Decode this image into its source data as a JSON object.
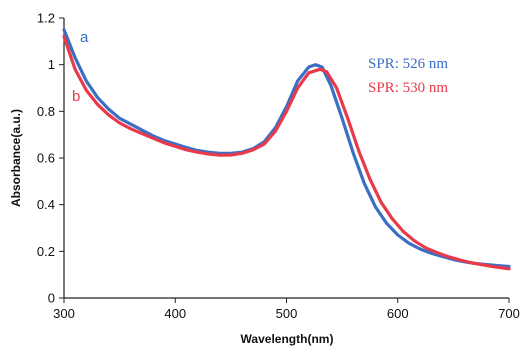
{
  "chart_data": {
    "type": "line",
    "title": "",
    "xlabel": "Wavelength(nm)",
    "ylabel": "Absorbance(a.u.)",
    "xlim": [
      300,
      700
    ],
    "ylim": [
      0,
      1.2
    ],
    "x_ticks": [
      300,
      400,
      500,
      600,
      700
    ],
    "y_ticks": [
      0,
      0.2,
      0.4,
      0.6,
      0.8,
      1,
      1.2
    ],
    "grid": false,
    "series": [
      {
        "name": "a",
        "color": "#3a6fc4",
        "points": [
          [
            300,
            1.15
          ],
          [
            310,
            1.03
          ],
          [
            320,
            0.93
          ],
          [
            330,
            0.86
          ],
          [
            340,
            0.81
          ],
          [
            350,
            0.77
          ],
          [
            360,
            0.745
          ],
          [
            370,
            0.72
          ],
          [
            380,
            0.695
          ],
          [
            390,
            0.675
          ],
          [
            400,
            0.66
          ],
          [
            410,
            0.645
          ],
          [
            420,
            0.632
          ],
          [
            430,
            0.625
          ],
          [
            440,
            0.62
          ],
          [
            450,
            0.62
          ],
          [
            460,
            0.625
          ],
          [
            470,
            0.64
          ],
          [
            480,
            0.67
          ],
          [
            490,
            0.73
          ],
          [
            500,
            0.82
          ],
          [
            510,
            0.93
          ],
          [
            520,
            0.99
          ],
          [
            526,
            1.0
          ],
          [
            532,
            0.99
          ],
          [
            540,
            0.91
          ],
          [
            550,
            0.77
          ],
          [
            560,
            0.62
          ],
          [
            570,
            0.49
          ],
          [
            580,
            0.39
          ],
          [
            590,
            0.32
          ],
          [
            600,
            0.27
          ],
          [
            610,
            0.235
          ],
          [
            620,
            0.21
          ],
          [
            630,
            0.192
          ],
          [
            640,
            0.178
          ],
          [
            650,
            0.165
          ],
          [
            660,
            0.155
          ],
          [
            670,
            0.148
          ],
          [
            680,
            0.143
          ],
          [
            690,
            0.139
          ],
          [
            700,
            0.135
          ]
        ]
      },
      {
        "name": "b",
        "color": "#e83a4a",
        "points": [
          [
            300,
            1.12
          ],
          [
            310,
            0.98
          ],
          [
            320,
            0.89
          ],
          [
            330,
            0.83
          ],
          [
            340,
            0.785
          ],
          [
            350,
            0.75
          ],
          [
            360,
            0.725
          ],
          [
            370,
            0.705
          ],
          [
            380,
            0.685
          ],
          [
            390,
            0.665
          ],
          [
            400,
            0.65
          ],
          [
            410,
            0.635
          ],
          [
            420,
            0.625
          ],
          [
            430,
            0.617
          ],
          [
            440,
            0.612
          ],
          [
            450,
            0.613
          ],
          [
            460,
            0.62
          ],
          [
            470,
            0.635
          ],
          [
            480,
            0.66
          ],
          [
            490,
            0.715
          ],
          [
            500,
            0.8
          ],
          [
            510,
            0.9
          ],
          [
            520,
            0.965
          ],
          [
            530,
            0.98
          ],
          [
            536,
            0.97
          ],
          [
            545,
            0.9
          ],
          [
            555,
            0.77
          ],
          [
            565,
            0.63
          ],
          [
            575,
            0.51
          ],
          [
            585,
            0.41
          ],
          [
            595,
            0.34
          ],
          [
            605,
            0.285
          ],
          [
            615,
            0.245
          ],
          [
            625,
            0.215
          ],
          [
            635,
            0.195
          ],
          [
            645,
            0.178
          ],
          [
            655,
            0.164
          ],
          [
            665,
            0.152
          ],
          [
            675,
            0.143
          ],
          [
            685,
            0.135
          ],
          [
            700,
            0.125
          ]
        ]
      }
    ],
    "annotations": [
      {
        "text": "SPR: 526 nm",
        "color": "#3a6fc4"
      },
      {
        "text": "SPR: 530 nm",
        "color": "#e83a4a"
      }
    ]
  }
}
